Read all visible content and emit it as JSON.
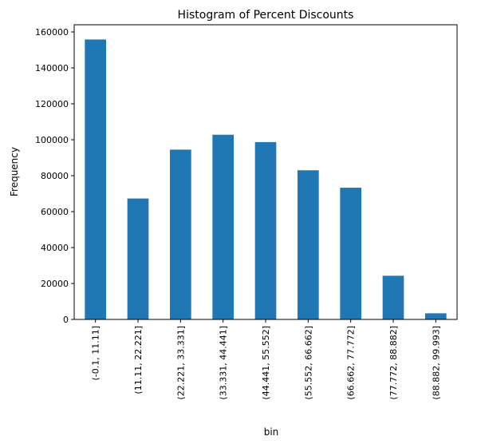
{
  "chart_data": {
    "type": "bar",
    "title": "Histogram of Percent Discounts",
    "xlabel": "bin",
    "ylabel": "Frequency",
    "categories": [
      "(-0.1, 11.11]",
      "(11.11, 22.221]",
      "(22.221, 33.331]",
      "(33.331, 44.441]",
      "(44.441, 55.552]",
      "(55.552, 66.662]",
      "(66.662, 77.772]",
      "(77.772, 88.882]",
      "(88.882, 99.993]"
    ],
    "values": [
      155800,
      67300,
      94500,
      102800,
      98700,
      83000,
      73300,
      24300,
      3400
    ],
    "ylim": [
      0,
      164000
    ],
    "yticks": [
      0,
      20000,
      40000,
      60000,
      80000,
      100000,
      120000,
      140000,
      160000
    ],
    "ytick_labels": [
      "0",
      "20000",
      "40000",
      "60000",
      "80000",
      "100000",
      "120000",
      "140000",
      "160000"
    ],
    "bar_color": "#1f77b4",
    "grid": false,
    "legend": false
  }
}
